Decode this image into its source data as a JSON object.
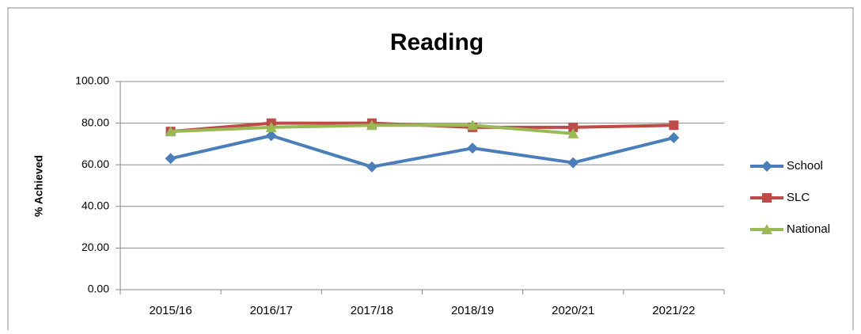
{
  "chart_data": {
    "type": "line",
    "title": "Reading",
    "y_label": "% Achieved",
    "categories": [
      "2015/16",
      "2016/17",
      "2017/18",
      "2018/19",
      "2020/21",
      "2021/22"
    ],
    "series": [
      {
        "name": "School",
        "color": "#4a7ebb",
        "marker": "diamond",
        "values": [
          63,
          74,
          59,
          68,
          61,
          73
        ]
      },
      {
        "name": "SLC",
        "color": "#be4b48",
        "marker": "square",
        "values": [
          76,
          80,
          80,
          78,
          78,
          79
        ]
      },
      {
        "name": "National",
        "color": "#98b954",
        "marker": "triangle",
        "values": [
          76,
          78,
          79,
          79,
          75,
          null
        ]
      }
    ],
    "ylim": [
      0,
      100
    ],
    "yticks": [
      {
        "value": 0,
        "label": "0.00"
      },
      {
        "value": 20,
        "label": "20.00"
      },
      {
        "value": 40,
        "label": "40.00"
      },
      {
        "value": 60,
        "label": "60.00"
      },
      {
        "value": 80,
        "label": "80.00"
      },
      {
        "value": 100,
        "label": "100.00"
      }
    ],
    "grid": true,
    "legend": "right"
  }
}
